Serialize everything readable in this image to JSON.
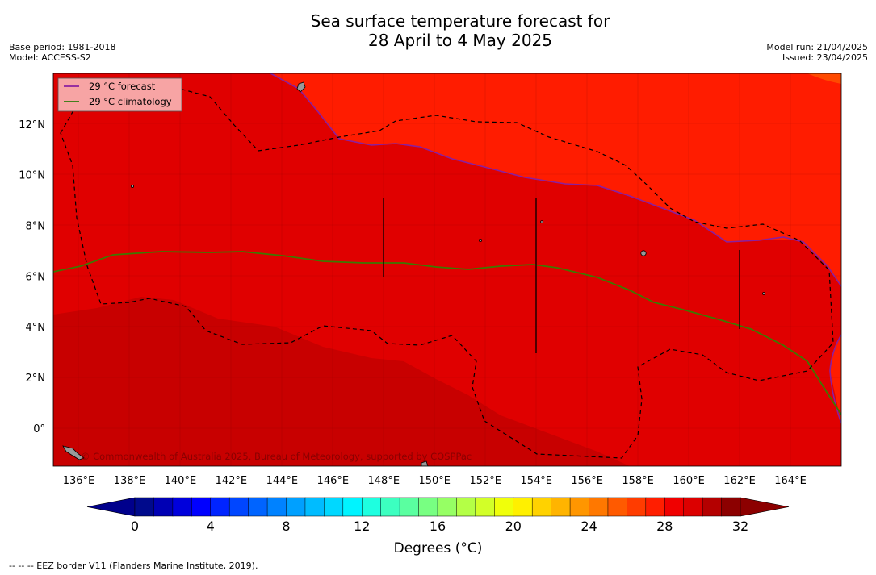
{
  "title": {
    "line1": "Sea surface temperature forecast for",
    "line2": "28 April to 4 May 2025"
  },
  "meta_left": {
    "base_period": "Base period: 1981-2018",
    "model": "Model: ACCESS-S2"
  },
  "meta_right": {
    "model_run": "Model run: 21/04/2025",
    "issued": "Issued: 23/04/2025"
  },
  "map": {
    "lon_range": [
      135,
      166
    ],
    "lat_range": [
      -1.5,
      14
    ],
    "x_ticks": [
      "136°E",
      "138°E",
      "140°E",
      "142°E",
      "144°E",
      "146°E",
      "148°E",
      "150°E",
      "152°E",
      "154°E",
      "156°E",
      "158°E",
      "160°E",
      "162°E",
      "164°E"
    ],
    "y_ticks": [
      "12°N",
      "10°N",
      "8°N",
      "6°N",
      "4°N",
      "2°N",
      "0°"
    ],
    "legend": [
      {
        "label": "29 °C  forecast",
        "color": "#8a1fa0"
      },
      {
        "label": "29 °C  climatology",
        "color": "#2a7a0a"
      }
    ],
    "copyright": "© Commonwealth of Australia 2025, Bureau of Meteorology, supported by COSPPac",
    "field_colors": {
      "warmest": "#c80000",
      "warm": "#e00000",
      "mid": "#ff1c00",
      "cooler": "#ff4a00"
    }
  },
  "colorbar": {
    "ticks": [
      "0",
      "4",
      "8",
      "12",
      "16",
      "20",
      "24",
      "28",
      "32"
    ],
    "label": "Degrees ($^\\circ$C)",
    "label_display": "Degrees (°C)",
    "colors": [
      "#000a8c",
      "#0000b4",
      "#0000dc",
      "#0000ff",
      "#0024ff",
      "#0046ff",
      "#0064ff",
      "#0082ff",
      "#00a0ff",
      "#00bcff",
      "#00d8ff",
      "#00f4ff",
      "#1effe0",
      "#3cffc0",
      "#5affa0",
      "#78ff82",
      "#96ff64",
      "#b4ff46",
      "#d2ff28",
      "#f0ff0a",
      "#fff000",
      "#ffd200",
      "#ffb400",
      "#ff9600",
      "#ff7800",
      "#ff5a00",
      "#ff3c00",
      "#ff1e00",
      "#f00000",
      "#dc0000",
      "#b40000",
      "#8c0000"
    ],
    "under_color": "#00008c",
    "over_color": "#8c0000"
  },
  "footnote": "--  --  -- EEZ border V11 (Flanders Marine Institute, 2019)."
}
